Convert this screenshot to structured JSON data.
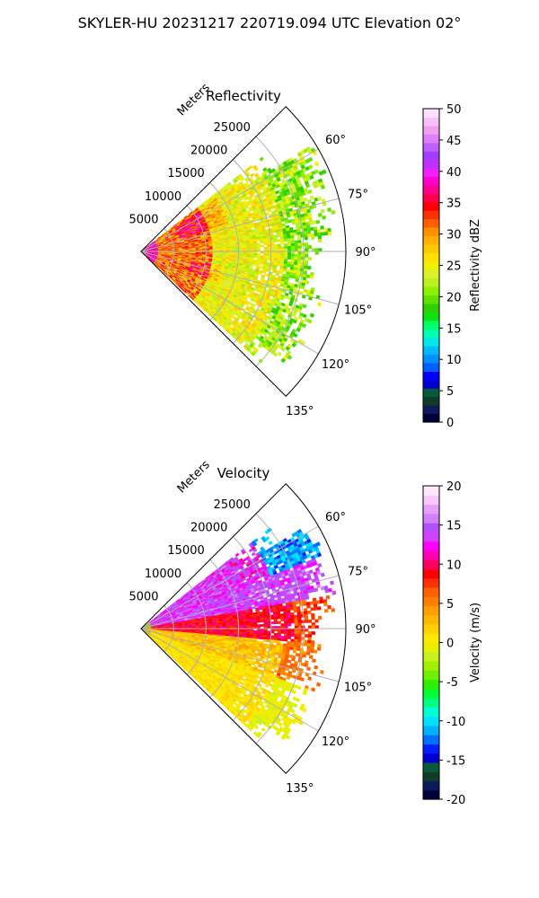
{
  "figure_title": "SKYLER-HU  20231217  220719.094 UTC Elevation 02°",
  "chart_data": [
    {
      "type": "heatmap",
      "projection": "polar-sector",
      "title": "Reflectivity",
      "radial_label": "Meters",
      "radial_ticks": [
        5000,
        10000,
        15000,
        20000,
        25000
      ],
      "radial_tick_labels": [
        "5000",
        "10000",
        "15000",
        "20000",
        "25000"
      ],
      "rmax": 31500,
      "theta_range_deg": [
        45,
        135
      ],
      "theta_ticks": [
        60,
        75,
        90,
        105,
        120,
        135
      ],
      "theta_tick_labels": [
        "60°",
        "75°",
        "90°",
        "105°",
        "120°",
        "135°"
      ],
      "grid": true,
      "colorbar": {
        "label": "Reflectivity dBZ",
        "range": [
          0,
          50
        ],
        "ticks": [
          0,
          5,
          10,
          15,
          20,
          25,
          30,
          35,
          40,
          45,
          50
        ],
        "tick_labels": [
          "0",
          "5",
          "10",
          "15",
          "20",
          "25",
          "30",
          "35",
          "40",
          "45",
          "50"
        ]
      }
    },
    {
      "type": "heatmap",
      "projection": "polar-sector",
      "title": "Velocity",
      "radial_label": "Meters",
      "radial_ticks": [
        5000,
        10000,
        15000,
        20000,
        25000
      ],
      "radial_tick_labels": [
        "5000",
        "10000",
        "15000",
        "20000",
        "25000"
      ],
      "rmax": 31500,
      "theta_range_deg": [
        45,
        135
      ],
      "theta_ticks": [
        60,
        75,
        90,
        105,
        120,
        135
      ],
      "theta_tick_labels": [
        "60°",
        "75°",
        "90°",
        "105°",
        "120°",
        "135°"
      ],
      "grid": true,
      "colorbar": {
        "label": "Velocity (m/s)",
        "range": [
          -20,
          20
        ],
        "ticks": [
          -20,
          -15,
          -10,
          -5,
          0,
          5,
          10,
          15,
          20
        ],
        "tick_labels": [
          "-20",
          "-15",
          "-10",
          "-5",
          "0",
          "5",
          "10",
          "15",
          "20"
        ]
      }
    }
  ]
}
